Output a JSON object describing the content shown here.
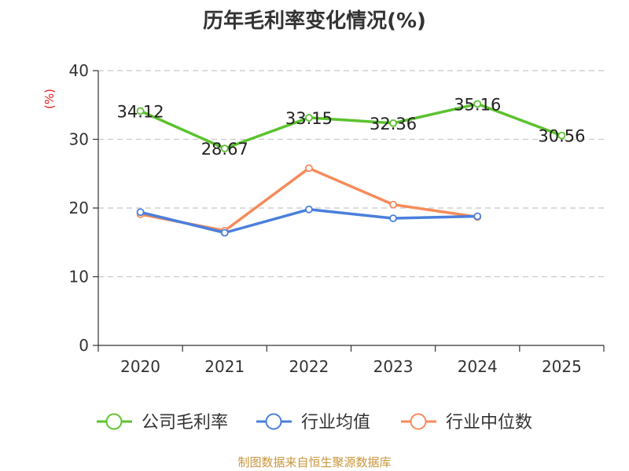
{
  "chart_data": {
    "type": "line",
    "title": "历年毛利率变化情况(%)",
    "ylabel": "(%)",
    "xlabel": "",
    "categories": [
      "2020",
      "2021",
      "2022",
      "2023",
      "2024",
      "2025"
    ],
    "ylim": [
      0,
      40
    ],
    "yticks": [
      0,
      10,
      20,
      30,
      40
    ],
    "grid": true,
    "legend": "bottom",
    "series": [
      {
        "name": "公司毛利率",
        "color": "#5cc22e",
        "values": [
          34.12,
          28.67,
          33.15,
          32.36,
          35.16,
          30.56
        ],
        "labels": [
          "34.12",
          "28.67",
          "33.15",
          "32.36",
          "35.16",
          "30.56"
        ]
      },
      {
        "name": "行业均值",
        "color": "#4a7fdc",
        "values": [
          19.4,
          16.4,
          19.8,
          18.5,
          18.8,
          null
        ]
      },
      {
        "name": "行业中位数",
        "color": "#f58b5a",
        "values": [
          19.1,
          16.7,
          25.8,
          20.5,
          18.7,
          null
        ]
      }
    ]
  },
  "footer": {
    "source": "制图数据来自恒生聚源数据库"
  }
}
